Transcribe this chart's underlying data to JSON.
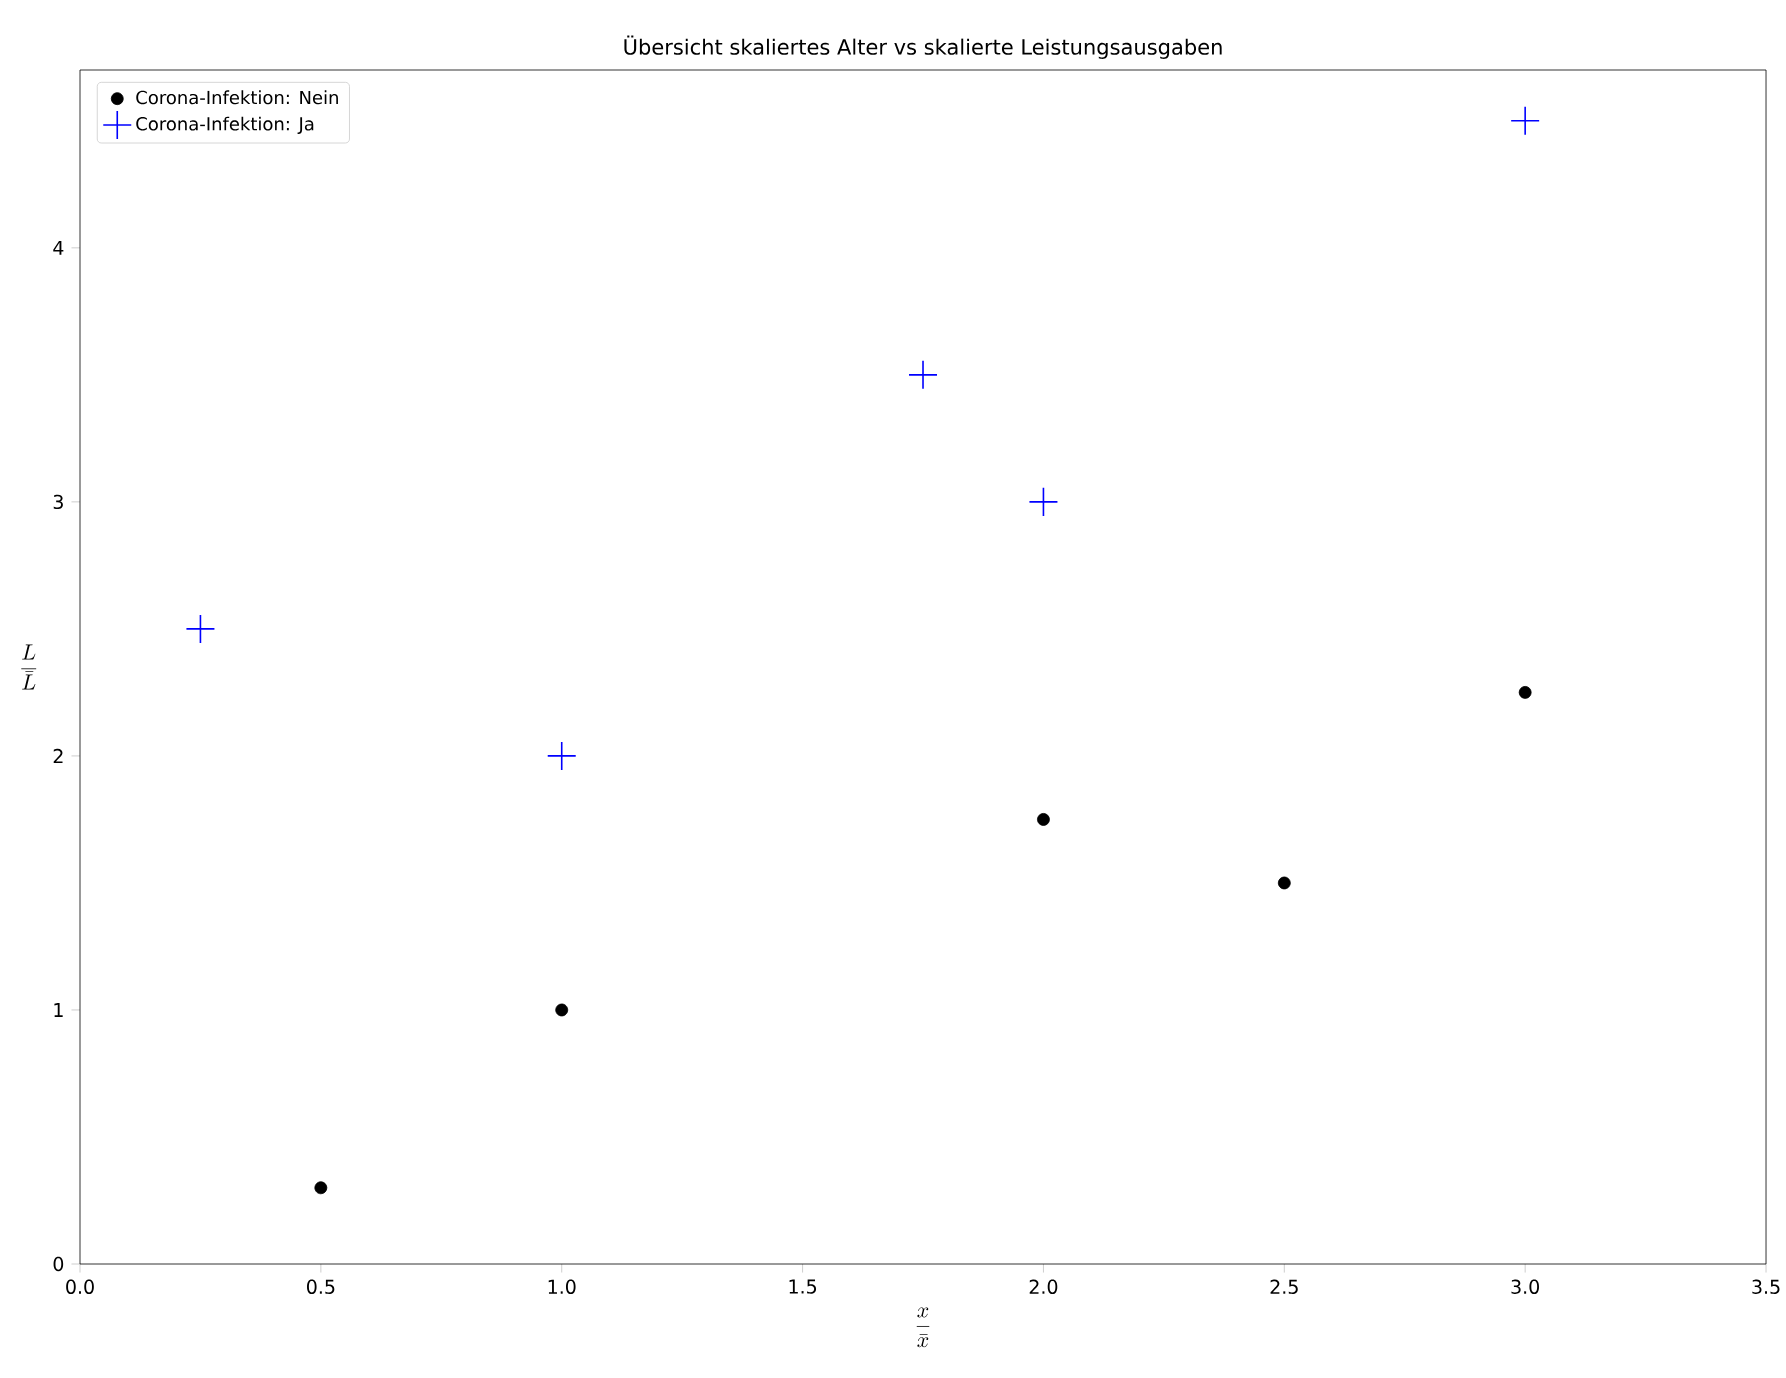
{
  "chart_data": {
    "type": "scatter",
    "title": "Übersicht skaliertes Alter vs skalierte Leistungsausgaben",
    "xlabel": "\\frac{x}{\\bar{x}}",
    "ylabel": "\\frac{L}{\\bar{L}}",
    "xlim": [
      0,
      3.5
    ],
    "ylim": [
      0,
      4.7
    ],
    "xticks": [
      {
        "value": 0,
        "label": "0.0"
      },
      {
        "value": 0.5,
        "label": "0.5"
      },
      {
        "value": 1,
        "label": "1.0"
      },
      {
        "value": 1.5,
        "label": "1.5"
      },
      {
        "value": 2,
        "label": "2.0"
      },
      {
        "value": 2.5,
        "label": "2.5"
      },
      {
        "value": 3,
        "label": "3.0"
      },
      {
        "value": 3.5,
        "label": "3.5"
      }
    ],
    "yticks": [
      0,
      1,
      2,
      3,
      4
    ],
    "legend": "top left",
    "grid": false,
    "series": [
      {
        "name": "Corona-Infektion: Nein",
        "color": "#000000",
        "marker": "circle",
        "x": [
          0.5,
          1,
          2,
          2.5,
          3
        ],
        "values": [
          0.3,
          1,
          1.75,
          1.5,
          2.25
        ]
      },
      {
        "name": "Corona-Infektion: Ja",
        "color": "#0000ff",
        "marker": "cross",
        "x": [
          0.25,
          1,
          1.75,
          2,
          3
        ],
        "values": [
          2.5,
          2,
          3.5,
          3,
          4.5
        ]
      }
    ]
  }
}
